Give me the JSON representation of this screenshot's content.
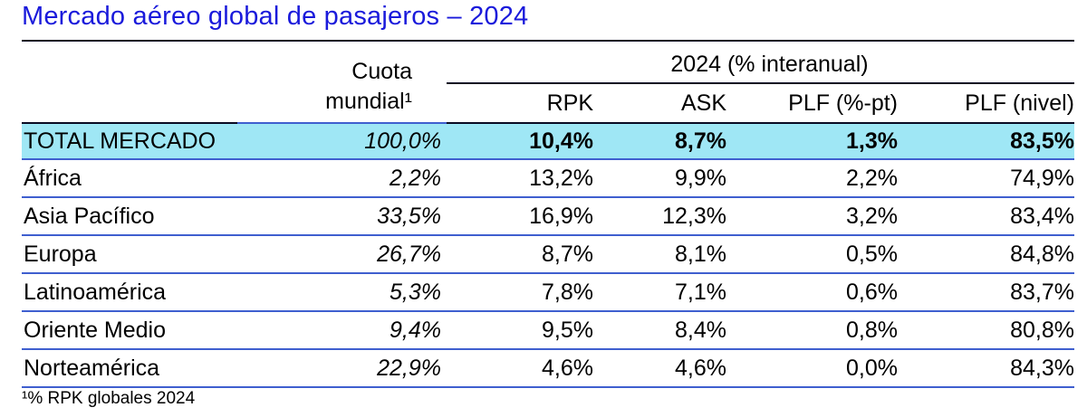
{
  "title": "Mercado aéreo global de pasajeros – 2024",
  "header": {
    "share_line1": "Cuota",
    "share_line2": "mundial¹",
    "group_label": "2024 (% interanual)",
    "columns": [
      "RPK",
      "ASK",
      "PLF (%-pt)",
      "PLF (nivel)"
    ]
  },
  "rows": [
    {
      "region": "TOTAL MERCADO",
      "share": "100,0%",
      "rpk": "10,4%",
      "ask": "8,7%",
      "plf_pt": "1,3%",
      "plf_level": "83,5%"
    },
    {
      "region": "África",
      "share": "2,2%",
      "rpk": "13,2%",
      "ask": "9,9%",
      "plf_pt": "2,2%",
      "plf_level": "74,9%"
    },
    {
      "region": "Asia Pacífico",
      "share": "33,5%",
      "rpk": "16,9%",
      "ask": "12,3%",
      "plf_pt": "3,2%",
      "plf_level": "83,4%"
    },
    {
      "region": "Europa",
      "share": "26,7%",
      "rpk": "8,7%",
      "ask": "8,1%",
      "plf_pt": "0,5%",
      "plf_level": "84,8%"
    },
    {
      "region": "Latinoamérica",
      "share": "5,3%",
      "rpk": "7,8%",
      "ask": "7,1%",
      "plf_pt": "0,6%",
      "plf_level": "83,7%"
    },
    {
      "region": "Oriente Medio",
      "share": "9,4%",
      "rpk": "9,5%",
      "ask": "8,4%",
      "plf_pt": "0,8%",
      "plf_level": "80,8%"
    },
    {
      "region": "Norteamérica",
      "share": "22,9%",
      "rpk": "4,6%",
      "ask": "4,6%",
      "plf_pt": "0,0%",
      "plf_level": "84,3%"
    }
  ],
  "footnote": "¹% RPK globales 2024",
  "colors": {
    "title": "#1a1adb",
    "total_row_bg": "#9fe7f5",
    "row_rule": "#3f5fcf"
  }
}
